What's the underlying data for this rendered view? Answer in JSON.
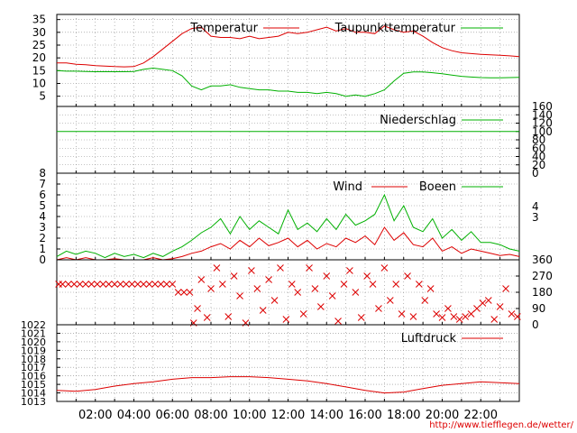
{
  "colors": {
    "red": "#dd0000",
    "green": "#00b000",
    "grid": "#888888",
    "frame": "#000000"
  },
  "footer_url": "http://www.tiefflegen.de/wetter/",
  "chart_data": [
    {
      "type": "line",
      "panel": "temperature",
      "y_ticks": [
        "5",
        "10",
        "15",
        "20",
        "25",
        "30",
        "35"
      ],
      "ylim": [
        1,
        37
      ],
      "x_range": [
        0,
        24
      ],
      "grid": true,
      "legend": "top",
      "series": [
        {
          "name": "Temperatur",
          "color": "#dd0000",
          "x": [
            0,
            0.5,
            1,
            1.5,
            2,
            2.5,
            3,
            3.5,
            4,
            4.5,
            5,
            5.5,
            6,
            6.5,
            7,
            7.5,
            8,
            8.5,
            9,
            9.5,
            10,
            10.5,
            11,
            11.5,
            12,
            12.5,
            13,
            13.5,
            14,
            14.5,
            15,
            15.5,
            16,
            16.5,
            17,
            17.5,
            18,
            18.5,
            19,
            19.5,
            20,
            20.5,
            21,
            21.5,
            22,
            22.5,
            23,
            23.5,
            24
          ],
          "y": [
            18,
            18,
            17.5,
            17.3,
            17,
            16.8,
            16.6,
            16.5,
            16.6,
            18,
            20.5,
            23.5,
            26.5,
            29.5,
            31.5,
            32,
            28.5,
            28,
            28,
            27.5,
            28.5,
            27.5,
            28,
            28.5,
            30,
            29.5,
            30,
            31,
            32,
            30.5,
            31.5,
            30,
            30,
            29.5,
            32.5,
            31,
            30,
            30.5,
            28.5,
            26,
            24,
            22.8,
            22,
            21.7,
            21.4,
            21.2,
            21,
            20.8,
            20.5
          ]
        },
        {
          "name": "Taupunkttemperatur",
          "color": "#00b000",
          "x": [
            0,
            0.5,
            1,
            1.5,
            2,
            2.5,
            3,
            3.5,
            4,
            4.5,
            5,
            5.5,
            6,
            6.5,
            7,
            7.5,
            8,
            8.5,
            9,
            9.5,
            10,
            10.5,
            11,
            11.5,
            12,
            12.5,
            13,
            13.5,
            14,
            14.5,
            15,
            15.5,
            16,
            16.5,
            17,
            17.5,
            18,
            18.5,
            19,
            19.5,
            20,
            20.5,
            21,
            21.5,
            22,
            22.5,
            23,
            23.5,
            24
          ],
          "y": [
            15,
            14.8,
            14.8,
            14.7,
            14.6,
            14.6,
            14.6,
            14.6,
            14.7,
            15.5,
            16,
            15.5,
            15,
            13,
            9,
            7.5,
            9,
            9,
            9.5,
            8.5,
            8,
            7.5,
            7.5,
            7,
            7,
            6.5,
            6.5,
            6,
            6.5,
            6,
            5,
            5.5,
            5,
            6,
            7.5,
            11,
            14,
            14.5,
            14.5,
            14.2,
            13.8,
            13.3,
            12.8,
            12.5,
            12.3,
            12.2,
            12.2,
            12.3,
            12.4
          ]
        }
      ]
    },
    {
      "type": "line",
      "panel": "precipitation",
      "y_ticks": [
        "0",
        "20",
        "40",
        "60",
        "80",
        "100",
        "120",
        "140",
        "160"
      ],
      "ylim": [
        0,
        160
      ],
      "x_range": [
        0,
        24
      ],
      "grid": true,
      "legend": "top-right",
      "series": [
        {
          "name": "Niederschlag",
          "color": "#00b000",
          "x": [
            0,
            24
          ],
          "y": [
            100,
            100
          ]
        }
      ]
    },
    {
      "type": "line",
      "panel": "wind",
      "y_ticks": [
        "0",
        "1",
        "2",
        "3",
        "4",
        "5",
        "6",
        "7",
        "8"
      ],
      "y_ticks_right": [
        "3",
        "4"
      ],
      "ylim": [
        0,
        8
      ],
      "x_range": [
        0,
        24
      ],
      "grid": true,
      "legend": "top",
      "series": [
        {
          "name": "Wind",
          "color": "#dd0000",
          "x": [
            0,
            0.5,
            1,
            1.5,
            2,
            2.5,
            3,
            3.5,
            4,
            4.5,
            5,
            5.5,
            6,
            6.5,
            7,
            7.5,
            8,
            8.5,
            9,
            9.5,
            10,
            10.5,
            11,
            11.5,
            12,
            12.5,
            13,
            13.5,
            14,
            14.5,
            15,
            15.5,
            16,
            16.5,
            17,
            17.5,
            18,
            18.5,
            19,
            19.5,
            20,
            20.5,
            21,
            21.5,
            22,
            22.5,
            23,
            23.5,
            24
          ],
          "y": [
            0,
            0.2,
            0,
            0.2,
            0,
            0,
            0.1,
            0,
            0,
            0,
            0.2,
            0,
            0.1,
            0.3,
            0.6,
            0.8,
            1.2,
            1.5,
            1,
            1.8,
            1.2,
            2,
            1.3,
            1.6,
            2,
            1.2,
            1.8,
            1,
            1.5,
            1.2,
            2,
            1.6,
            2.2,
            1.4,
            3,
            1.8,
            2.5,
            1.4,
            1.2,
            2,
            0.8,
            1.2,
            0.6,
            1,
            0.8,
            0.6,
            0.4,
            0.5,
            0.3
          ]
        },
        {
          "name": "Boeen",
          "color": "#00b000",
          "x": [
            0,
            0.5,
            1,
            1.5,
            2,
            2.5,
            3,
            3.5,
            4,
            4.5,
            5,
            5.5,
            6,
            6.5,
            7,
            7.5,
            8,
            8.5,
            9,
            9.5,
            10,
            10.5,
            11,
            11.5,
            12,
            12.5,
            13,
            13.5,
            14,
            14.5,
            15,
            15.5,
            16,
            16.5,
            17,
            17.5,
            18,
            18.5,
            19,
            19.5,
            20,
            20.5,
            21,
            21.5,
            22,
            22.5,
            23,
            23.5,
            24
          ],
          "y": [
            0.3,
            0.8,
            0.5,
            0.8,
            0.6,
            0.2,
            0.6,
            0.3,
            0.5,
            0.2,
            0.6,
            0.3,
            0.8,
            1.2,
            1.8,
            2.5,
            3,
            3.8,
            2.4,
            4,
            2.8,
            3.6,
            3,
            2.4,
            4.6,
            2.8,
            3.4,
            2.6,
            3.8,
            2.8,
            4.2,
            3.2,
            3.6,
            4.2,
            6,
            3.6,
            5,
            3,
            2.6,
            3.8,
            2,
            2.8,
            1.8,
            2.6,
            1.6,
            1.6,
            1.4,
            1,
            0.8
          ]
        }
      ]
    },
    {
      "type": "scatter",
      "panel": "wind-direction",
      "y_ticks": [
        "0",
        "90",
        "180",
        "270",
        "360"
      ],
      "ylim": [
        0,
        360
      ],
      "x_range": [
        0,
        24
      ],
      "grid": true,
      "series": [
        {
          "marker": "x",
          "color": "#dd0000",
          "x": [
            0.1,
            0.3,
            0.6,
            0.9,
            1.2,
            1.5,
            1.8,
            2.1,
            2.4,
            2.7,
            3,
            3.3,
            3.6,
            3.9,
            4.2,
            4.5,
            4.8,
            5.1,
            5.4,
            5.7,
            6,
            6.3,
            6.6,
            6.9,
            7.1,
            7.3,
            7.5,
            7.8,
            8,
            8.3,
            8.6,
            8.9,
            9.2,
            9.5,
            9.8,
            10.1,
            10.4,
            10.7,
            11,
            11.3,
            11.6,
            11.9,
            12.2,
            12.5,
            12.8,
            13.1,
            13.4,
            13.7,
            14,
            14.3,
            14.6,
            14.9,
            15.2,
            15.5,
            15.8,
            16.1,
            16.4,
            16.7,
            17,
            17.3,
            17.6,
            17.9,
            18.2,
            18.5,
            18.8,
            19.1,
            19.4,
            19.7,
            20,
            20.3,
            20.6,
            20.9,
            21.2,
            21.5,
            21.8,
            22.1,
            22.4,
            22.7,
            23,
            23.3,
            23.6,
            23.9
          ],
          "y": [
            225,
            225,
            225,
            225,
            225,
            225,
            225,
            225,
            225,
            225,
            225,
            225,
            225,
            225,
            225,
            225,
            225,
            225,
            225,
            225,
            225,
            180,
            180,
            180,
            10,
            90,
            250,
            40,
            200,
            315,
            225,
            45,
            270,
            160,
            10,
            300,
            200,
            80,
            250,
            135,
            315,
            30,
            225,
            180,
            60,
            315,
            200,
            100,
            270,
            160,
            20,
            225,
            300,
            180,
            40,
            270,
            225,
            90,
            315,
            135,
            225,
            60,
            270,
            45,
            225,
            135,
            200,
            60,
            40,
            90,
            45,
            30,
            45,
            60,
            90,
            120,
            135,
            30,
            100,
            200,
            60,
            45
          ]
        }
      ]
    },
    {
      "type": "line",
      "panel": "pressure",
      "y_ticks": [
        "1013",
        "1014",
        "1015",
        "1016",
        "1017",
        "1018",
        "1019",
        "1020",
        "1021",
        "1022"
      ],
      "ylim": [
        1013,
        1022
      ],
      "x_range": [
        0,
        24
      ],
      "x_ticks": [
        "02:00",
        "04:00",
        "06:00",
        "08:00",
        "10:00",
        "12:00",
        "14:00",
        "16:00",
        "18:00",
        "20:00",
        "22:00"
      ],
      "grid": true,
      "legend": "top-right",
      "series": [
        {
          "name": "Luftdruck",
          "color": "#dd0000",
          "x": [
            0,
            1,
            2,
            3,
            4,
            5,
            6,
            7,
            8,
            9,
            10,
            11,
            12,
            13,
            14,
            15,
            16,
            17,
            18,
            19,
            20,
            21,
            22,
            23,
            24
          ],
          "y": [
            1014.3,
            1014.2,
            1014.4,
            1014.8,
            1015.1,
            1015.3,
            1015.6,
            1015.8,
            1015.8,
            1015.9,
            1015.9,
            1015.8,
            1015.6,
            1015.4,
            1015.1,
            1014.7,
            1014.3,
            1014.0,
            1014.1,
            1014.5,
            1014.9,
            1015.1,
            1015.3,
            1015.2,
            1015.1
          ]
        }
      ]
    }
  ]
}
